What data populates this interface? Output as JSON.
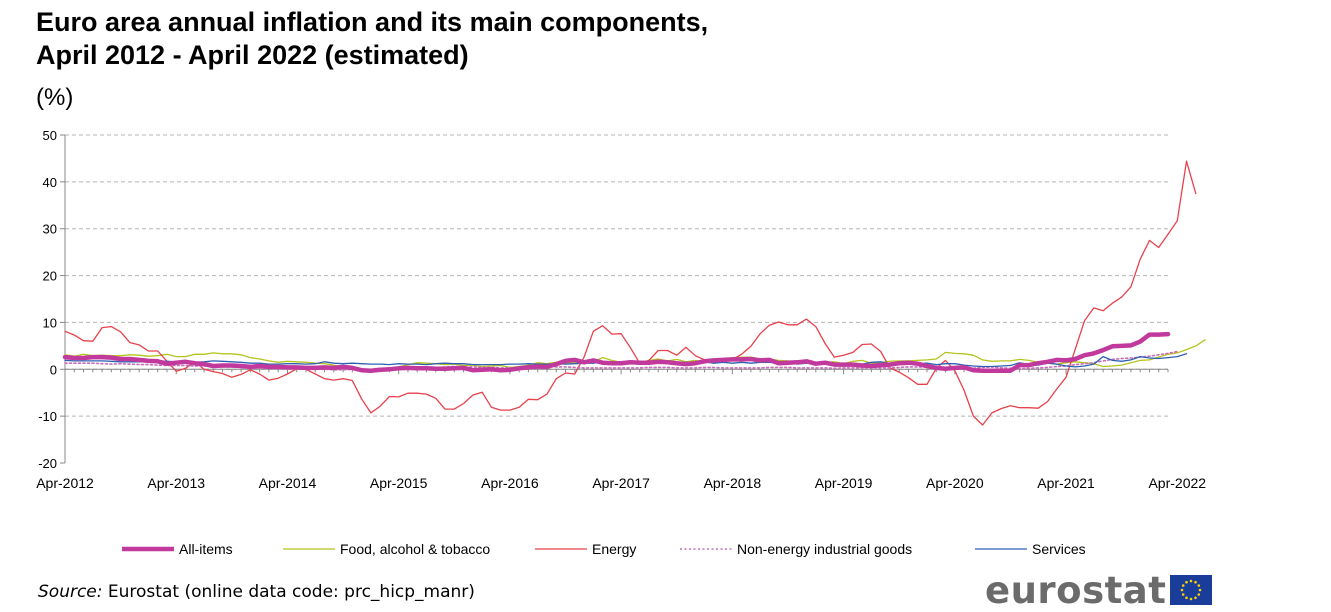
{
  "header": {
    "title": "Euro area annual inflation and its main components,\nApril 2012 - April 2022 (estimated)",
    "unit": "(%)"
  },
  "footer": {
    "source_label": "Source:",
    "source_text": " Eurostat (online data code: prc_hicp_manr)",
    "logo_text": "eurostat"
  },
  "chart_data": {
    "type": "line",
    "ylim": [
      -20,
      50
    ],
    "yticks": [
      -20,
      -10,
      0,
      10,
      20,
      30,
      40,
      50
    ],
    "xtick_labels": [
      "Apr-2012",
      "Apr-2013",
      "Apr-2014",
      "Apr-2015",
      "Apr-2016",
      "Apr-2017",
      "Apr-2018",
      "Apr-2019",
      "Apr-2020",
      "Apr-2021",
      "Apr-2022"
    ],
    "x_start": "Apr-2012",
    "x_end": "Apr-2022",
    "grid": "horizontal dashed",
    "legend_position": "bottom",
    "series": [
      {
        "name": "All-items",
        "color": "#c1399c",
        "style": "thick",
        "values": [
          2.6,
          2.4,
          2.4,
          2.6,
          2.6,
          2.5,
          2.2,
          2.2,
          2.0,
          1.8,
          1.7,
          1.2,
          1.4,
          1.6,
          1.3,
          1.1,
          0.7,
          0.8,
          0.8,
          0.7,
          0.5,
          0.7,
          0.5,
          0.5,
          0.4,
          0.4,
          0.3,
          0.3,
          0.4,
          0.3,
          0.5,
          0.3,
          -0.2,
          -0.3,
          -0.1,
          0.0,
          0.2,
          0.3,
          0.2,
          0.2,
          0.1,
          0.1,
          0.2,
          0.3,
          -0.2,
          -0.1,
          0.0,
          -0.2,
          -0.1,
          0.2,
          0.4,
          0.6,
          0.5,
          1.1,
          1.8,
          2.0,
          1.5,
          1.9,
          1.4,
          1.3,
          1.3,
          1.5,
          1.4,
          1.4,
          1.6,
          1.5,
          1.3,
          1.1,
          1.3,
          1.7,
          1.9,
          2.0,
          2.1,
          2.1,
          2.2,
          1.9,
          2.0,
          1.3,
          1.4,
          1.5,
          1.7,
          1.2,
          1.4,
          1.0,
          1.0,
          1.0,
          0.8,
          0.7,
          0.9,
          1.0,
          1.3,
          1.4,
          1.2,
          0.7,
          0.3,
          0.1,
          0.3,
          0.4,
          -0.2,
          -0.3,
          -0.3,
          -0.3,
          -0.3,
          0.9,
          0.9,
          1.3,
          1.6,
          2.0,
          1.9,
          2.2,
          3.0,
          3.4,
          4.1,
          4.9,
          5.0,
          5.1,
          5.9,
          7.4,
          7.4,
          7.5
        ]
      },
      {
        "name": "Food, alcohol & tobacco",
        "color": "#b4c41e",
        "style": "thin",
        "values": [
          3.1,
          2.8,
          3.2,
          2.9,
          3.0,
          2.9,
          2.9,
          3.1,
          3.0,
          2.8,
          2.9,
          3.2,
          2.7,
          2.7,
          3.2,
          3.2,
          3.5,
          3.3,
          3.3,
          3.1,
          2.5,
          2.2,
          1.8,
          1.5,
          1.7,
          1.6,
          1.5,
          1.3,
          1.2,
          0.9,
          0.5,
          0.3,
          0.1,
          -0.1,
          0.2,
          0.0,
          0.5,
          1.0,
          1.4,
          1.3,
          1.2,
          1.0,
          1.1,
          0.8,
          0.9,
          0.6,
          0.7,
          0.8,
          0.4,
          0.6,
          0.9,
          1.4,
          1.2,
          1.5,
          1.2,
          1.4,
          1.2,
          1.6,
          2.5,
          1.9,
          1.5,
          1.4,
          1.3,
          1.9,
          2.2,
          1.8,
          2.1,
          1.6,
          1.9,
          1.5,
          1.8,
          1.9,
          2.5,
          2.6,
          2.6,
          2.2,
          2.2,
          1.9,
          1.8,
          1.5,
          1.6,
          1.4,
          1.5,
          1.6,
          1.2,
          1.7,
          1.9,
          1.3,
          1.4,
          1.7,
          1.8,
          1.8,
          1.9,
          2.0,
          2.2,
          3.6,
          3.4,
          3.3,
          3.0,
          2.0,
          1.7,
          1.8,
          1.8,
          2.1,
          1.9,
          1.5,
          1.3,
          1.1,
          1.4,
          1.6,
          1.4,
          1.2,
          0.6,
          0.7,
          0.9,
          1.4,
          1.9,
          2.0,
          2.6,
          3.2,
          3.5,
          4.2,
          5.0,
          6.3
        ]
      },
      {
        "name": "Energy",
        "color": "#e8414c",
        "style": "thin",
        "values": [
          8.1,
          7.3,
          6.1,
          6.0,
          8.9,
          9.1,
          8.0,
          5.7,
          5.2,
          3.9,
          3.9,
          1.7,
          -0.4,
          0.2,
          1.6,
          0.0,
          -0.5,
          -0.9,
          -1.7,
          -1.1,
          -0.1,
          -1.0,
          -2.3,
          -1.9,
          -1.0,
          0.1,
          0.0,
          -1.0,
          -2.0,
          -2.3,
          -2.0,
          -2.4,
          -6.3,
          -9.3,
          -7.9,
          -5.8,
          -5.9,
          -5.1,
          -5.1,
          -5.3,
          -6.2,
          -8.5,
          -8.5,
          -7.3,
          -5.5,
          -4.9,
          -8.1,
          -8.7,
          -8.7,
          -8.1,
          -6.4,
          -6.5,
          -5.3,
          -2.0,
          -0.8,
          -1.0,
          2.6,
          8.1,
          9.3,
          7.5,
          7.6,
          4.6,
          1.3,
          1.9,
          4.0,
          4.0,
          3.0,
          4.7,
          2.9,
          2.0,
          2.2,
          2.1,
          2.1,
          3.2,
          4.9,
          7.6,
          9.4,
          10.1,
          9.5,
          9.5,
          10.7,
          9.1,
          5.5,
          2.6,
          3.0,
          3.6,
          5.3,
          5.4,
          3.8,
          0.3,
          -0.6,
          -1.8,
          -3.2,
          -3.2,
          0.2,
          1.9,
          -0.3,
          -4.5,
          -10.0,
          -11.9,
          -9.3,
          -8.4,
          -7.8,
          -8.2,
          -8.2,
          -8.3,
          -6.9,
          -4.2,
          -1.7,
          4.3,
          10.4,
          13.1,
          12.5,
          14.1,
          15.4,
          17.6,
          23.5,
          27.5,
          26.0,
          28.8,
          31.7,
          44.4,
          37.5
        ]
      },
      {
        "name": "Non-energy industrial goods",
        "color": "#c66fb8",
        "style": "dotted",
        "values": [
          1.3,
          1.3,
          1.3,
          1.3,
          1.2,
          1.1,
          1.2,
          1.1,
          1.0,
          1.0,
          0.9,
          0.8,
          0.8,
          0.8,
          0.7,
          0.7,
          0.6,
          0.5,
          0.5,
          0.4,
          0.3,
          0.3,
          0.2,
          0.2,
          0.1,
          0.1,
          0.1,
          0.0,
          0.0,
          -0.1,
          -0.1,
          0.0,
          0.0,
          -0.1,
          0.0,
          0.1,
          0.2,
          0.3,
          0.3,
          0.3,
          0.4,
          0.5,
          0.6,
          0.5,
          0.5,
          0.4,
          0.4,
          0.3,
          0.3,
          0.4,
          0.5,
          0.6,
          0.6,
          0.5,
          0.5,
          0.4,
          0.3,
          0.3,
          0.3,
          0.3,
          0.3,
          0.3,
          0.3,
          0.4,
          0.4,
          0.4,
          0.3,
          0.3,
          0.3,
          0.4,
          0.4,
          0.3,
          0.3,
          0.3,
          0.3,
          0.3,
          0.4,
          0.4,
          0.4,
          0.3,
          0.3,
          0.3,
          0.3,
          0.2,
          0.3,
          0.3,
          0.3,
          0.3,
          0.3,
          0.3,
          0.4,
          0.5,
          0.5,
          0.4,
          0.3,
          0.2,
          0.2,
          0.3,
          0.2,
          0.4,
          0.5,
          0.3,
          0.2,
          0.1,
          0.2,
          0.3,
          0.4,
          0.6,
          0.7,
          1.0,
          1.2,
          1.4,
          1.8,
          2.1,
          2.3,
          2.4,
          2.6,
          2.8,
          3.1,
          3.4,
          3.8
        ]
      },
      {
        "name": "Services",
        "color": "#2f5fb3",
        "style": "thin",
        "values": [
          1.9,
          1.8,
          1.8,
          1.8,
          1.8,
          1.7,
          1.6,
          1.6,
          1.6,
          1.7,
          1.8,
          1.7,
          1.6,
          1.5,
          1.5,
          1.6,
          1.8,
          1.7,
          1.6,
          1.5,
          1.3,
          1.3,
          1.1,
          1.1,
          1.2,
          1.2,
          1.1,
          1.2,
          1.6,
          1.3,
          1.2,
          1.3,
          1.2,
          1.1,
          1.1,
          1.0,
          1.2,
          1.1,
          1.1,
          1.0,
          1.2,
          1.3,
          1.2,
          1.2,
          1.0,
          1.0,
          1.0,
          1.0,
          1.1,
          1.1,
          1.2,
          1.1,
          1.1,
          1.2,
          1.1,
          1.2,
          1.3,
          1.3,
          1.6,
          1.6,
          1.2,
          1.6,
          1.4,
          1.5,
          1.6,
          1.4,
          1.3,
          1.5,
          1.4,
          1.6,
          1.3,
          1.5,
          1.3,
          1.5,
          1.3,
          1.5,
          1.5,
          1.3,
          1.6,
          1.1,
          1.3,
          1.4,
          1.3,
          1.1,
          1.0,
          1.3,
          1.1,
          1.5,
          1.6,
          1.2,
          1.6,
          1.4,
          1.2,
          1.3,
          1.0,
          1.2,
          1.2,
          0.9,
          0.7,
          0.6,
          0.6,
          0.7,
          0.8,
          1.4,
          1.0,
          0.9,
          1.3,
          1.1,
          0.7,
          0.5,
          0.7,
          1.1,
          2.7,
          1.9,
          1.7,
          2.0,
          2.7,
          2.4,
          2.3,
          2.5,
          2.7,
          3.3
        ]
      }
    ]
  }
}
